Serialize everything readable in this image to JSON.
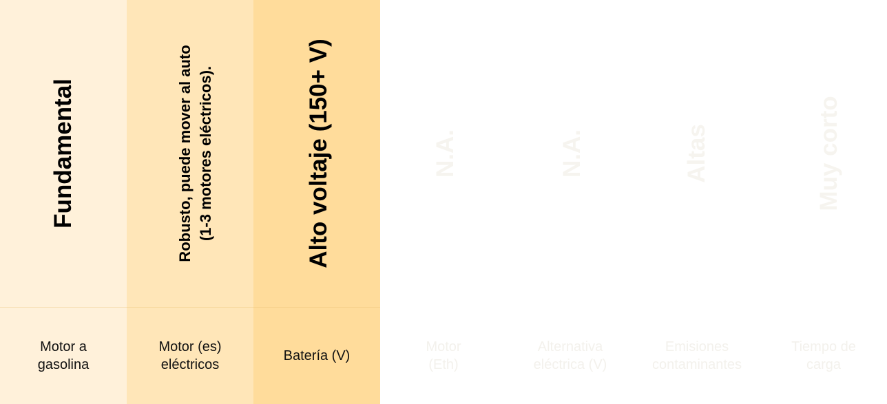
{
  "columns": [
    {
      "header": "Fundamental",
      "label": "Motor a\ngasolina"
    },
    {
      "header": "Robusto, puede mover al auto\n(1-3 motores eléctricos).",
      "label": "Motor (es)\neléctricos"
    },
    {
      "header": "Alto voltaje (150+ V)",
      "label": "Batería (V)"
    },
    {
      "header": "N.A.",
      "label": "Motor\n(Eth)"
    },
    {
      "header": "N.A.",
      "label": "Alternativa\neléctrica (V)"
    },
    {
      "header": "Altas",
      "label": "Emisiones\ncontaminantes"
    },
    {
      "header": "Muy corto",
      "label": "Tiempo de\ncarga"
    }
  ],
  "colors": {
    "col1_bg": "#fff1da",
    "col2_bg": "#ffe6b8",
    "col3_bg": "#ffdc9b",
    "background": "#ffffff"
  }
}
